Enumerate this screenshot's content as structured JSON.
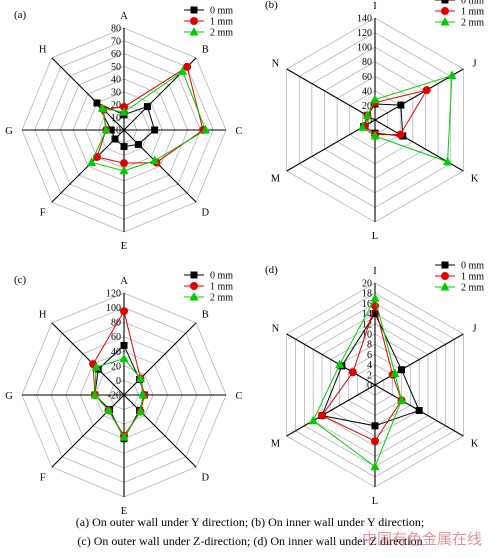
{
  "figure": {
    "captions": [
      "(a) On outer wall under Y direction; (b) On inner wall under Y direction;",
      "(c) On outer wall under Z-direction; (d) On inner wall under Z direction"
    ],
    "watermark": "中国有色金属在线"
  },
  "chart_data": [
    {
      "type": "radar",
      "panel_label": "(a)",
      "axes": [
        "A",
        "B",
        "C",
        "D",
        "E",
        "F",
        "G",
        "H"
      ],
      "ticks": [
        "0",
        "10",
        "20",
        "30",
        "40",
        "50",
        "60",
        "70",
        "80"
      ],
      "rlim": [
        0,
        80
      ],
      "legend_position": "top-right",
      "series": [
        {
          "name": "0 mm",
          "color": "#000000",
          "marker": "square",
          "values": [
            12,
            26,
            24,
            16,
            13,
            10,
            10,
            30
          ]
        },
        {
          "name": "1 mm",
          "color": "#e00000",
          "marker": "circle",
          "values": [
            18,
            70,
            62,
            36,
            26,
            30,
            14,
            23
          ]
        },
        {
          "name": "2 mm",
          "color": "#00cc00",
          "marker": "triangle",
          "values": [
            14,
            65,
            64,
            34,
            32,
            36,
            14,
            24
          ]
        }
      ]
    },
    {
      "type": "radar",
      "panel_label": "(b)",
      "axes": [
        "I",
        "J",
        "K",
        "L",
        "M",
        "N"
      ],
      "ticks": [
        "0",
        "20",
        "40",
        "60",
        "80",
        "100",
        "120",
        "140"
      ],
      "rlim": [
        0,
        140
      ],
      "legend_position": "top-right",
      "series": [
        {
          "name": "0 mm",
          "color": "#000000",
          "marker": "square",
          "values": [
            22,
            41,
            44,
            18,
            18,
            12
          ]
        },
        {
          "name": "1 mm",
          "color": "#e00000",
          "marker": "circle",
          "values": [
            24,
            82,
            40,
            20,
            16,
            12
          ]
        },
        {
          "name": "2 mm",
          "color": "#00cc00",
          "marker": "triangle",
          "values": [
            28,
            122,
            115,
            22,
            20,
            12
          ]
        }
      ]
    },
    {
      "type": "radar",
      "panel_label": "(c)",
      "axes": [
        "A",
        "B",
        "C",
        "D",
        "E",
        "F",
        "G",
        "H"
      ],
      "ticks": [
        "-20",
        "0",
        "20",
        "40",
        "60",
        "80",
        "100",
        "120"
      ],
      "rlim": [
        -20,
        120
      ],
      "legend_position": "top-right",
      "series": [
        {
          "name": "0 mm",
          "color": "#000000",
          "marker": "square",
          "values": [
            48,
            10,
            8,
            10,
            40,
            8,
            20,
            30
          ]
        },
        {
          "name": "1 mm",
          "color": "#e00000",
          "marker": "circle",
          "values": [
            95,
            12,
            8,
            12,
            36,
            10,
            20,
            40
          ]
        },
        {
          "name": "2 mm",
          "color": "#00cc00",
          "marker": "triangle",
          "values": [
            30,
            12,
            6,
            12,
            38,
            10,
            20,
            34
          ]
        }
      ]
    },
    {
      "type": "radar",
      "panel_label": "(d)",
      "axes": [
        "I",
        "J",
        "K",
        "L",
        "M",
        "N"
      ],
      "ticks": [
        "0",
        "2",
        "4",
        "6",
        "8",
        "10",
        "12",
        "14",
        "16",
        "18",
        "20"
      ],
      "rlim": [
        0,
        20
      ],
      "legend_position": "top-right",
      "series": [
        {
          "name": "0 mm",
          "color": "#000000",
          "marker": "square",
          "values": [
            14,
            6,
            10,
            8,
            12,
            7.5
          ]
        },
        {
          "name": "1 mm",
          "color": "#e00000",
          "marker": "circle",
          "values": [
            15.5,
            4,
            6,
            11,
            12,
            5
          ]
        },
        {
          "name": "2 mm",
          "color": "#00cc00",
          "marker": "triangle",
          "values": [
            17,
            4.5,
            6,
            16,
            14,
            8
          ]
        }
      ]
    }
  ]
}
